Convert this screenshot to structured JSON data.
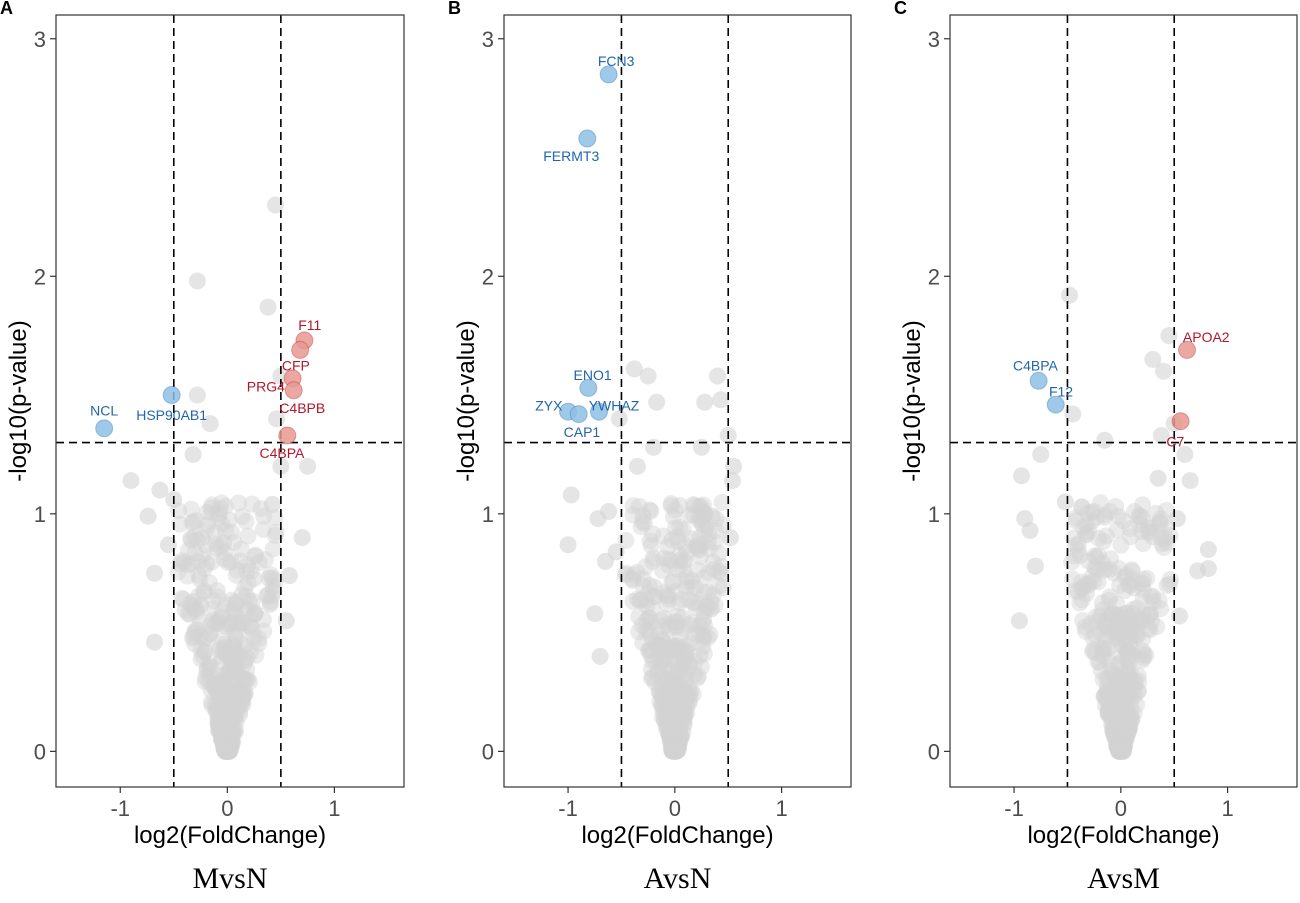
{
  "colors": {
    "up": "#b2182b",
    "down": "#2166ac",
    "up_fill": "#e8998f",
    "down_fill": "#8ec0e4",
    "ns_fill": "#d3d3d3",
    "frame": "#333333"
  },
  "chart_data": [
    {
      "type": "scatter",
      "panel": "A",
      "title": "MvsN",
      "xlabel": "log2(FoldChange)",
      "ylabel": "-log10(p-value)",
      "xlim": [
        -1.6,
        1.65
      ],
      "ylim": [
        -0.15,
        3.1
      ],
      "xticks": [
        -1,
        0,
        1
      ],
      "yticks": [
        0,
        1,
        2,
        3
      ],
      "fc_threshold": [
        -0.5,
        0.5
      ],
      "p_threshold": 1.3,
      "grid": false,
      "labeled_points": [
        {
          "label": "NCL",
          "x": -1.15,
          "y": 1.36,
          "status": "down",
          "label_x": -1.15,
          "label_y": 1.43
        },
        {
          "label": "HSP90AB1",
          "x": -0.52,
          "y": 1.5,
          "status": "down",
          "label_x": -0.52,
          "label_y": 1.41
        },
        {
          "label": "F11",
          "x": 0.72,
          "y": 1.73,
          "status": "up",
          "label_x": 0.77,
          "label_y": 1.79
        },
        {
          "label": "CFP",
          "x": 0.68,
          "y": 1.69,
          "status": "up",
          "label_x": 0.64,
          "label_y": 1.62
        },
        {
          "label": "PRG4",
          "x": 0.61,
          "y": 1.57,
          "status": "up",
          "label_x": 0.36,
          "label_y": 1.53
        },
        {
          "label": "C4BPB",
          "x": 0.62,
          "y": 1.52,
          "status": "up",
          "label_x": 0.7,
          "label_y": 1.44
        },
        {
          "label": "C4BPA",
          "x": 0.56,
          "y": 1.33,
          "status": "up",
          "label_x": 0.51,
          "label_y": 1.25
        }
      ],
      "ns_points": [
        [
          -0.9,
          1.14
        ],
        [
          -0.63,
          1.1
        ],
        [
          -0.32,
          1.25
        ],
        [
          -0.28,
          1.5
        ],
        [
          -0.16,
          1.38
        ],
        [
          -0.28,
          1.98
        ],
        [
          0.38,
          1.87
        ],
        [
          0.45,
          2.3
        ],
        [
          0.5,
          1.58
        ],
        [
          0.46,
          1.4
        ],
        [
          0.5,
          1.2
        ],
        [
          0.75,
          1.2
        ],
        [
          0.42,
          1.04
        ],
        [
          0.7,
          0.9
        ],
        [
          -0.74,
          0.99
        ],
        [
          -0.68,
          0.75
        ],
        [
          -0.68,
          0.46
        ],
        [
          -0.5,
          1.06
        ],
        [
          0.58,
          0.74
        ],
        [
          0.55,
          0.55
        ],
        [
          -0.55,
          0.87
        ],
        [
          0.4,
          0.62
        ]
      ],
      "cloud_seed": 11,
      "cloud_count": 470,
      "cloud_halfwidth": 0.44
    },
    {
      "type": "scatter",
      "panel": "B",
      "title": "AvsN",
      "xlabel": "log2(FoldChange)",
      "ylabel": "-log10(p-value)",
      "xlim": [
        -1.6,
        1.65
      ],
      "ylim": [
        -0.15,
        3.1
      ],
      "xticks": [
        -1,
        0,
        1
      ],
      "yticks": [
        0,
        1,
        2,
        3
      ],
      "fc_threshold": [
        -0.5,
        0.5
      ],
      "p_threshold": 1.3,
      "grid": false,
      "labeled_points": [
        {
          "label": "FCN3",
          "x": -0.62,
          "y": 2.85,
          "status": "down",
          "label_x": -0.55,
          "label_y": 2.9
        },
        {
          "label": "FERMT3",
          "x": -0.82,
          "y": 2.58,
          "status": "down",
          "label_x": -0.97,
          "label_y": 2.5
        },
        {
          "label": "ENO1",
          "x": -0.81,
          "y": 1.53,
          "status": "down",
          "label_x": -0.77,
          "label_y": 1.58
        },
        {
          "label": "ZYX",
          "x": -1.0,
          "y": 1.43,
          "status": "down",
          "label_x": -1.18,
          "label_y": 1.45
        },
        {
          "label": "YWHAZ",
          "x": -0.71,
          "y": 1.43,
          "status": "down",
          "label_x": -0.57,
          "label_y": 1.45
        },
        {
          "label": "CAP1",
          "x": -0.9,
          "y": 1.42,
          "status": "down",
          "label_x": -0.87,
          "label_y": 1.34
        }
      ],
      "ns_points": [
        [
          -0.38,
          1.61
        ],
        [
          -0.25,
          1.58
        ],
        [
          -0.17,
          1.47
        ],
        [
          -0.52,
          1.4
        ],
        [
          -0.2,
          1.28
        ],
        [
          0.4,
          1.58
        ],
        [
          0.28,
          1.47
        ],
        [
          0.43,
          1.48
        ],
        [
          0.5,
          1.33
        ],
        [
          0.55,
          1.2
        ],
        [
          0.54,
          1.14
        ],
        [
          -1.0,
          0.87
        ],
        [
          -0.97,
          1.08
        ],
        [
          -0.72,
          0.98
        ],
        [
          -0.62,
          1.01
        ],
        [
          -0.65,
          0.8
        ],
        [
          -0.7,
          0.4
        ],
        [
          -0.75,
          0.58
        ],
        [
          -0.55,
          0.84
        ],
        [
          0.52,
          0.9
        ],
        [
          0.43,
          0.75
        ],
        [
          0.35,
          0.99
        ],
        [
          0.34,
          0.6
        ],
        [
          -0.35,
          1.2
        ],
        [
          0.25,
          1.28
        ]
      ],
      "cloud_seed": 29,
      "cloud_count": 470,
      "cloud_halfwidth": 0.44
    },
    {
      "type": "scatter",
      "panel": "C",
      "title": "AvsM",
      "xlabel": "log2(FoldChange)",
      "ylabel": "-log10(p-value)",
      "xlim": [
        -1.6,
        1.65
      ],
      "ylim": [
        -0.15,
        3.1
      ],
      "xticks": [
        -1,
        0,
        1
      ],
      "yticks": [
        0,
        1,
        2,
        3
      ],
      "fc_threshold": [
        -0.5,
        0.5
      ],
      "p_threshold": 1.3,
      "grid": false,
      "labeled_points": [
        {
          "label": "C4BPA",
          "x": -0.77,
          "y": 1.56,
          "status": "down",
          "label_x": -0.8,
          "label_y": 1.62
        },
        {
          "label": "F12",
          "x": -0.61,
          "y": 1.46,
          "status": "down",
          "label_x": -0.56,
          "label_y": 1.51
        },
        {
          "label": "APOA2",
          "x": 0.62,
          "y": 1.69,
          "status": "up",
          "label_x": 0.8,
          "label_y": 1.74
        },
        {
          "label": "C7",
          "x": 0.56,
          "y": 1.39,
          "status": "up",
          "label_x": 0.51,
          "label_y": 1.3
        }
      ],
      "ns_points": [
        [
          -0.48,
          1.92
        ],
        [
          -0.45,
          1.42
        ],
        [
          -0.15,
          1.31
        ],
        [
          0.45,
          1.75
        ],
        [
          0.3,
          1.65
        ],
        [
          0.4,
          1.6
        ],
        [
          0.5,
          1.38
        ],
        [
          0.38,
          1.33
        ],
        [
          0.35,
          1.15
        ],
        [
          0.65,
          1.14
        ],
        [
          0.72,
          0.76
        ],
        [
          0.82,
          0.77
        ],
        [
          0.82,
          0.85
        ],
        [
          0.55,
          0.57
        ],
        [
          -0.93,
          1.16
        ],
        [
          -0.9,
          0.98
        ],
        [
          -0.85,
          0.93
        ],
        [
          -0.8,
          0.78
        ],
        [
          -0.95,
          0.55
        ],
        [
          -0.52,
          1.05
        ],
        [
          0.53,
          0.98
        ],
        [
          0.6,
          1.25
        ],
        [
          -0.75,
          1.25
        ]
      ],
      "cloud_seed": 47,
      "cloud_count": 470,
      "cloud_halfwidth": 0.44
    }
  ]
}
